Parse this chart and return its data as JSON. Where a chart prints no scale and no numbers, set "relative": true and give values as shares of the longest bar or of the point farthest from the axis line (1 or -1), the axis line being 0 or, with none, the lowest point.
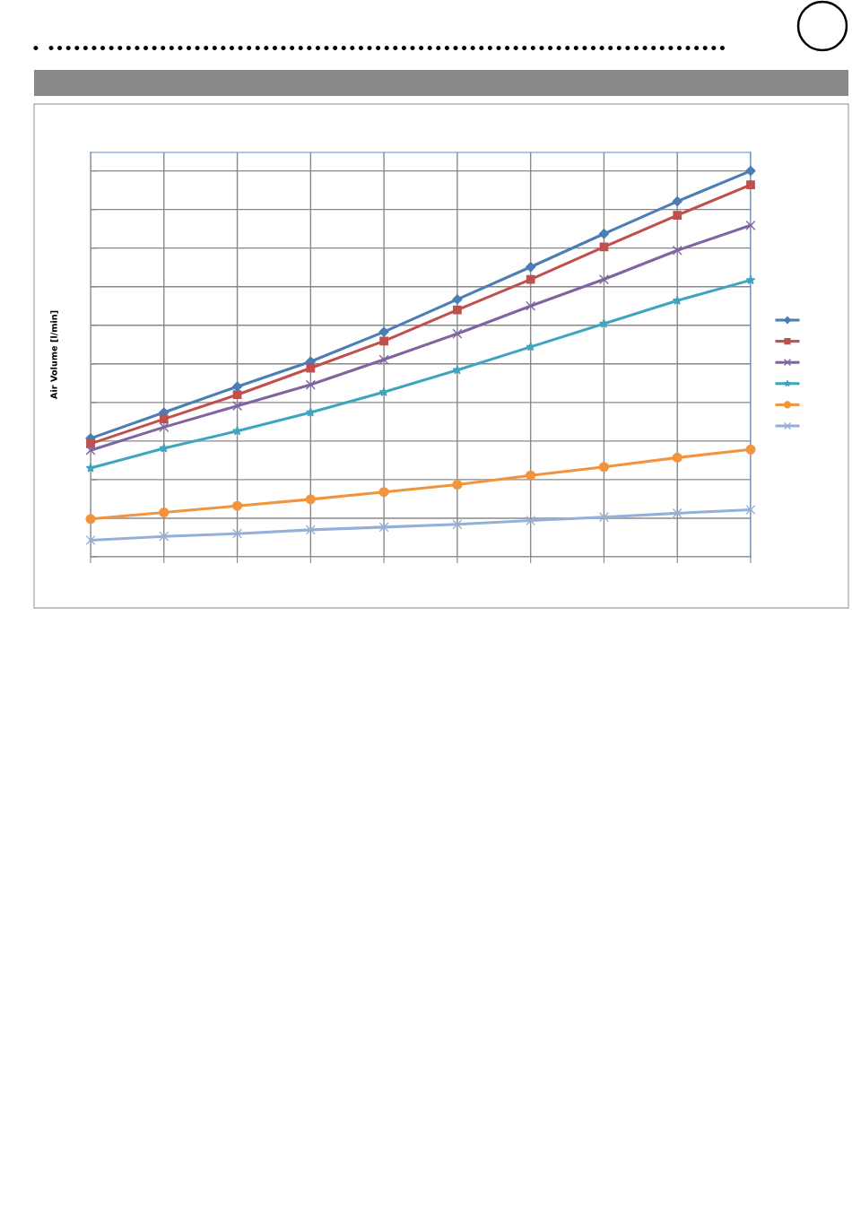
{
  "chart_data": {
    "type": "line",
    "relative": true,
    "ylabel": "Air Volume [l/min]",
    "categories": [
      null,
      null,
      null,
      null,
      null,
      null,
      null,
      null,
      null,
      null
    ],
    "grid": true,
    "series": [
      {
        "color": "#4a7eb4",
        "marker": "diamond",
        "values": [
          0.307,
          0.374,
          0.441,
          0.506,
          0.583,
          0.667,
          0.751,
          0.837,
          0.921,
          1
        ]
      },
      {
        "color": "#c0504d",
        "marker": "square",
        "values": [
          0.293,
          0.357,
          0.42,
          0.489,
          0.559,
          0.64,
          0.719,
          0.803,
          0.885,
          0.964
        ]
      },
      {
        "color": "#8064a2",
        "marker": "cross",
        "values": [
          0.276,
          0.336,
          0.391,
          0.446,
          0.511,
          0.578,
          0.65,
          0.719,
          0.794,
          0.859
        ]
      },
      {
        "color": "#3fa5be",
        "marker": "star",
        "values": [
          0.23,
          0.281,
          0.326,
          0.374,
          0.427,
          0.484,
          0.544,
          0.604,
          0.664,
          0.717
        ]
      },
      {
        "color": "#f0943e",
        "marker": "circle",
        "values": [
          0.098,
          0.115,
          0.132,
          0.149,
          0.168,
          0.187,
          0.211,
          0.233,
          0.257,
          0.278
        ]
      },
      {
        "color": "#95b0d8",
        "marker": "cross",
        "values": [
          0.043,
          0.053,
          0.06,
          0.07,
          0.077,
          0.084,
          0.094,
          0.103,
          0.113,
          0.122
        ]
      }
    ]
  }
}
